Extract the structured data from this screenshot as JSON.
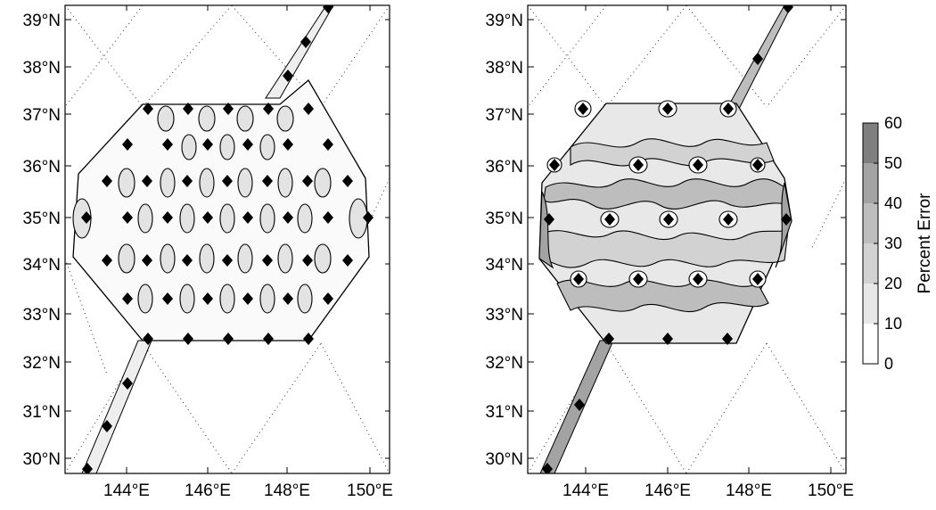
{
  "left_map": {
    "lat_labels": [
      "39°N",
      "38°N",
      "37°N",
      "36°N",
      "35°N",
      "34°N",
      "33°N",
      "32°N",
      "31°N",
      "30°N"
    ],
    "lon_labels": [
      "144°E",
      "146°E",
      "148°E",
      "150°E"
    ]
  },
  "right_map": {
    "lat_labels": [
      "39°N",
      "38°N",
      "37°N",
      "36°N",
      "35°N",
      "34°N",
      "33°N",
      "32°N",
      "31°N",
      "30°N"
    ],
    "lon_labels": [
      "144°E",
      "146°E",
      "148°E",
      "150°E"
    ]
  },
  "colorbar": {
    "title": "Percent Error",
    "ticks": [
      "60",
      "50",
      "40",
      "30",
      "20",
      "10",
      "0"
    ],
    "levels": [
      {
        "from": 0,
        "to": 10,
        "color": "#ffffff"
      },
      {
        "from": 10,
        "to": 20,
        "color": "#e8e8e8"
      },
      {
        "from": 20,
        "to": 30,
        "color": "#d2d2d2"
      },
      {
        "from": 30,
        "to": 40,
        "color": "#bdbdbd"
      },
      {
        "from": 40,
        "to": 50,
        "color": "#a3a3a3"
      },
      {
        "from": 50,
        "to": 60,
        "color": "#7f7f7f"
      }
    ]
  }
}
